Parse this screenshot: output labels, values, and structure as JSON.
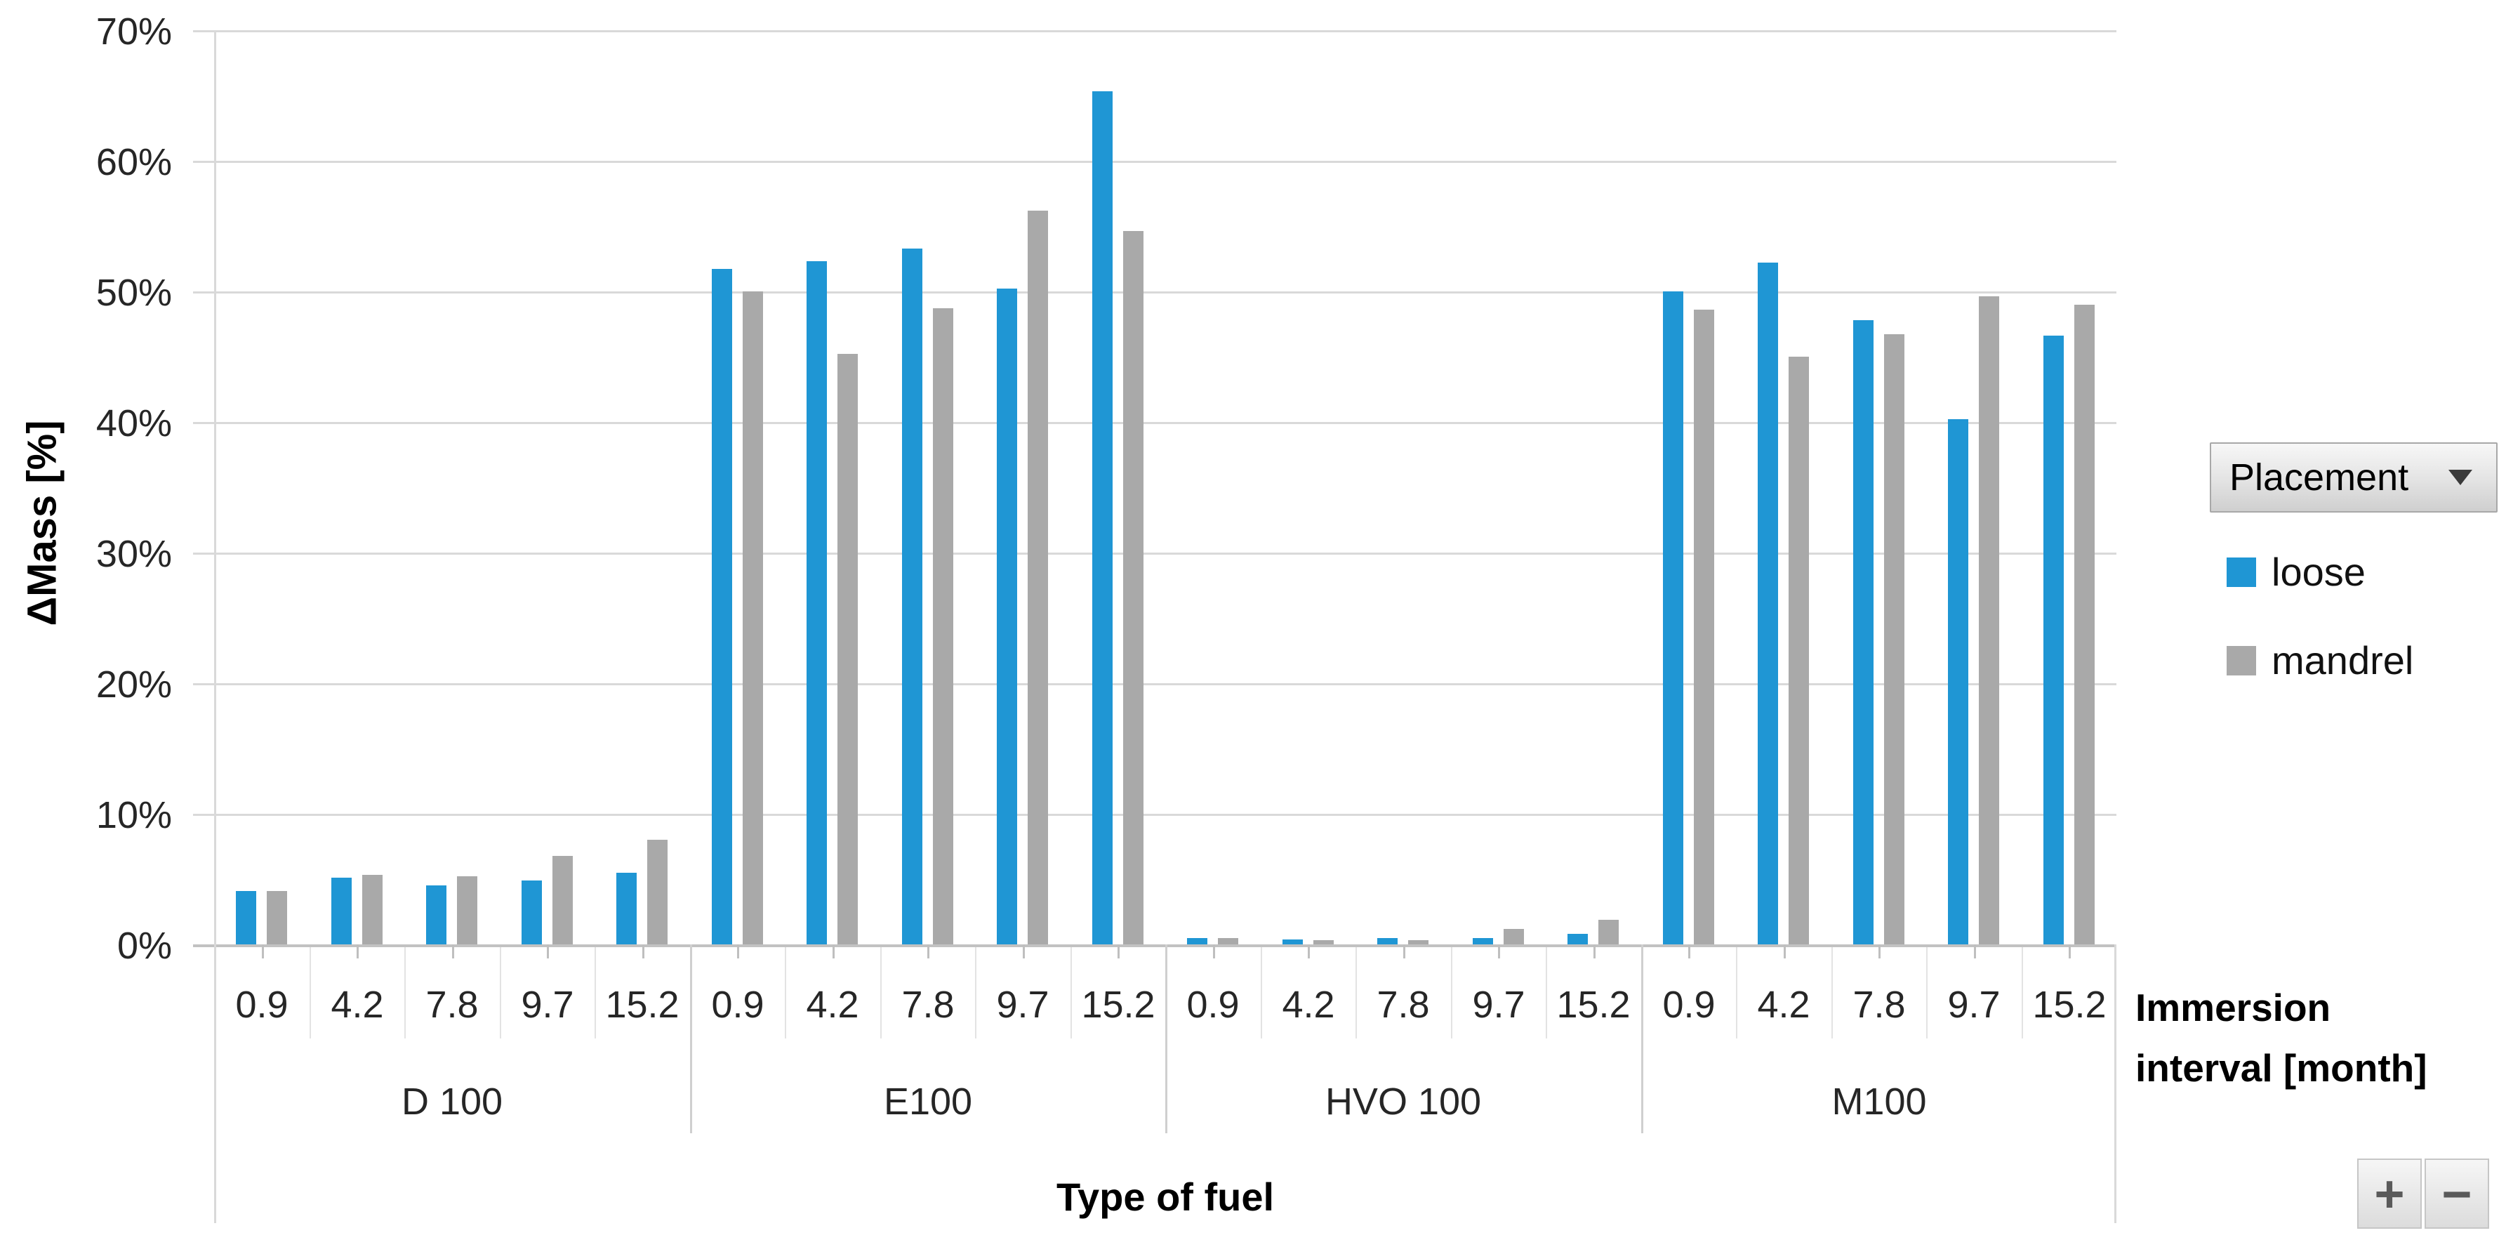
{
  "chart_data": {
    "type": "bar",
    "title": "",
    "ylabel": "ΔMass [%]",
    "xlabel": "Type of fuel",
    "x2label_lines": [
      "Immersion",
      "interval [month]"
    ],
    "ylim": [
      0,
      70
    ],
    "ytick_step": 10,
    "ytick_labels": [
      "0%",
      "10%",
      "20%",
      "30%",
      "40%",
      "50%",
      "60%",
      "70%"
    ],
    "grid": true,
    "legend_position": "right",
    "groups": [
      "D 100",
      "E100",
      "HVO 100",
      "M100"
    ],
    "intervals": [
      "0.9",
      "4.2",
      "7.8",
      "9.7",
      "15.2"
    ],
    "series": [
      {
        "name": "loose",
        "color": "#1F96D4",
        "values": [
          4.1,
          5.1,
          4.5,
          4.9,
          5.5,
          51.7,
          52.3,
          53.3,
          50.2,
          65.3,
          0.5,
          0.4,
          0.5,
          0.5,
          0.8,
          50.0,
          52.2,
          47.8,
          40.2,
          46.6
        ]
      },
      {
        "name": "mandrel",
        "color": "#A9A9A9",
        "values": [
          4.1,
          5.3,
          5.2,
          6.8,
          8.0,
          50.0,
          45.2,
          48.7,
          56.2,
          54.6,
          0.5,
          0.3,
          0.3,
          1.2,
          1.9,
          48.6,
          45.0,
          46.7,
          49.6,
          49.0
        ]
      }
    ]
  },
  "legend": {
    "field_button_label": "Placement",
    "entries": [
      {
        "label": "loose",
        "color": "#1F96D4"
      },
      {
        "label": "mandrel",
        "color": "#A9A9A9"
      }
    ]
  },
  "pivot_buttons": {
    "expand_label": "+",
    "collapse_label": "−"
  },
  "colors": {
    "gridline": "#D9D9D9",
    "axis_line": "#C2C2C2",
    "tick_text": "#262626",
    "title_text": "#000000"
  }
}
